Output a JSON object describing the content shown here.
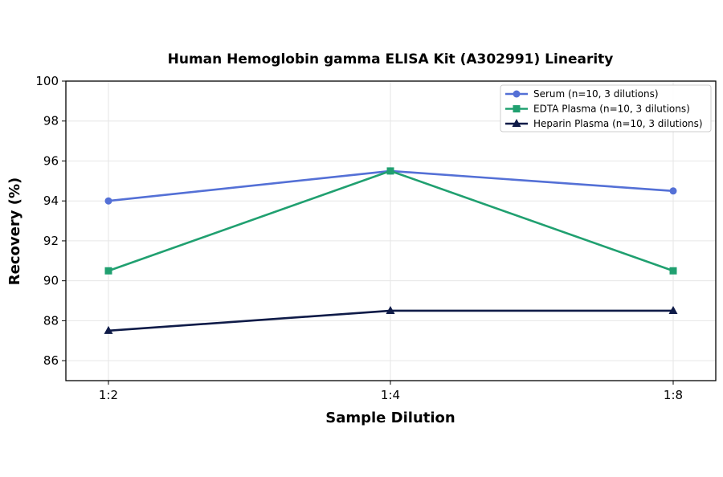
{
  "chart_data": {
    "type": "line",
    "title": "Human Hemoglobin gamma ELISA Kit (A302991) Linearity",
    "xlabel": "Sample Dilution",
    "ylabel": "Recovery (%)",
    "categories": [
      "1:2",
      "1:4",
      "1:8"
    ],
    "ylim": [
      85,
      100
    ],
    "yticks": [
      86,
      88,
      90,
      92,
      94,
      96,
      98,
      100
    ],
    "grid": true,
    "legend_position": "top-right",
    "series": [
      {
        "name": "Serum (n=10, 3 dilutions)",
        "values": [
          94.0,
          95.5,
          94.5
        ],
        "color": "#5470d6",
        "marker": "circle"
      },
      {
        "name": "EDTA Plasma (n=10, 3 dilutions)",
        "values": [
          90.5,
          95.5,
          90.5
        ],
        "color": "#20a070",
        "marker": "square"
      },
      {
        "name": "Heparin Plasma (n=10, 3 dilutions)",
        "values": [
          87.5,
          88.5,
          88.5
        ],
        "color": "#0f1b48",
        "marker": "triangle"
      }
    ]
  }
}
